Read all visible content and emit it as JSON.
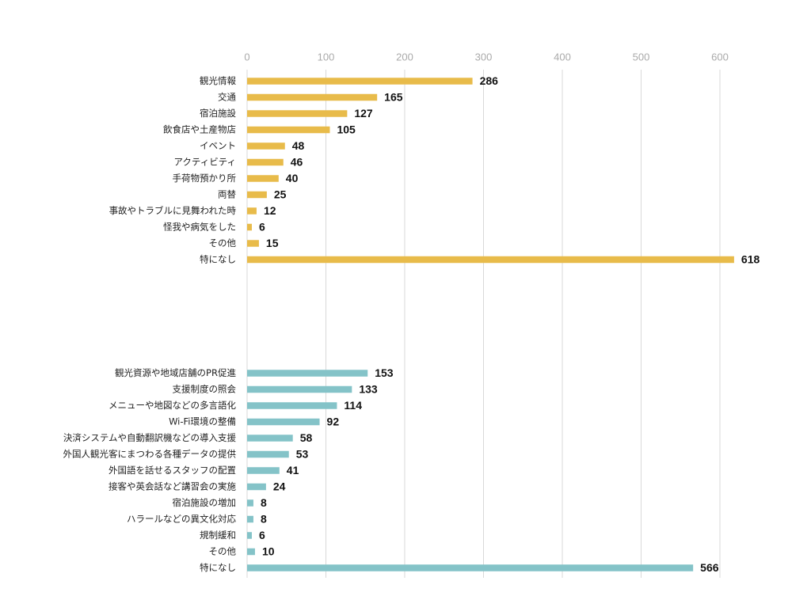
{
  "chart_data": {
    "type": "bar",
    "orientation": "horizontal",
    "grid": true,
    "xlim": [
      0,
      600
    ],
    "xticks": [
      0,
      100,
      200,
      300,
      400,
      500,
      600
    ],
    "series": [
      {
        "color": "#E8BB4A",
        "categories": [
          "観光情報",
          "交通",
          "宿泊施設",
          "飲食店や土産物店",
          "イベント",
          "アクティビティ",
          "手荷物預かり所",
          "両替",
          "事故やトラブルに見舞われた時",
          "怪我や病気をした",
          "その他",
          "特になし"
        ],
        "values": [
          286,
          165,
          127,
          105,
          48,
          46,
          40,
          25,
          12,
          6,
          15,
          618
        ]
      },
      {
        "color": "#84C3C8",
        "categories": [
          "観光資源や地域店舗のPR促進",
          "支援制度の照会",
          "メニューや地図などの多言語化",
          "Wi-Fi環境の整備",
          "決済システムや自動翻訳機などの導入支援",
          "外国人観光客にまつわる各種データの提供",
          "外国語を話せるスタッフの配置",
          "接客や英会話など講習会の実施",
          "宿泊施設の増加",
          "ハラールなどの異文化対応",
          "規制緩和",
          "その他",
          "特になし"
        ],
        "values": [
          153,
          133,
          114,
          92,
          58,
          53,
          41,
          24,
          8,
          8,
          6,
          10,
          566
        ]
      }
    ]
  }
}
